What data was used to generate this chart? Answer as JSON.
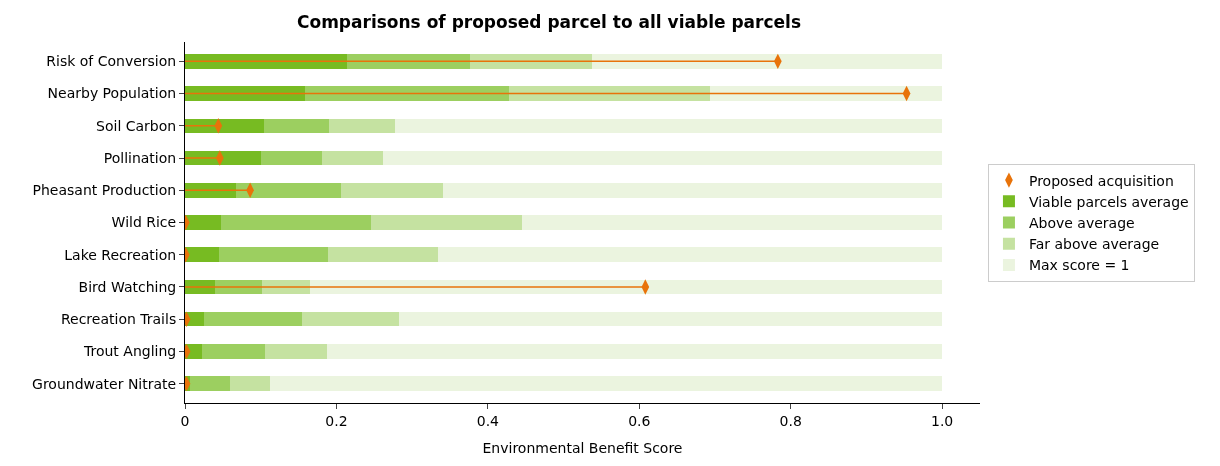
{
  "chart_data": {
    "type": "bar",
    "orientation": "horizontal",
    "stacked": true,
    "title": "Comparisons of proposed parcel to all viable parcels",
    "xlabel": "Environmental Benefit Score",
    "categories": [
      "Risk of Conversion",
      "Nearby Population",
      "Soil Carbon",
      "Pollination",
      "Pheasant Production",
      "Wild Rice",
      "Lake Recreation",
      "Bird Watching",
      "Recreation Trails",
      "Trout Angling",
      "Groundwater Nitrate"
    ],
    "series": [
      {
        "name": "Viable parcels average",
        "color": "#77bb22",
        "values": [
          0.214,
          0.159,
          0.104,
          0.1,
          0.067,
          0.047,
          0.045,
          0.04,
          0.025,
          0.022,
          0.006
        ]
      },
      {
        "name": "Above average",
        "color": "#9ccf60",
        "values": [
          0.162,
          0.269,
          0.086,
          0.081,
          0.139,
          0.199,
          0.144,
          0.062,
          0.129,
          0.083,
          0.054
        ]
      },
      {
        "name": "Far above average",
        "color": "#c5e2a1",
        "values": [
          0.162,
          0.265,
          0.088,
          0.08,
          0.135,
          0.199,
          0.145,
          0.063,
          0.129,
          0.082,
          0.052
        ]
      },
      {
        "name": "Max score = 1",
        "color": "#ebf4df",
        "values": [
          0.462,
          0.307,
          0.722,
          0.739,
          0.659,
          0.555,
          0.666,
          0.835,
          0.717,
          0.813,
          0.888
        ]
      },
      {
        "name": "Proposed acquisition",
        "type": "lollipop",
        "color": "#e8730a",
        "values": [
          0.783,
          0.953,
          0.044,
          0.046,
          0.086,
          0.001,
          0.001,
          0.608,
          0.002,
          0.002,
          0.002
        ]
      }
    ],
    "xlim": [
      0,
      1.05
    ],
    "xticks": [
      0,
      0.2,
      0.4,
      0.6,
      0.8,
      {
        "value": 1,
        "label": "1.0"
      }
    ],
    "legend": "right"
  }
}
